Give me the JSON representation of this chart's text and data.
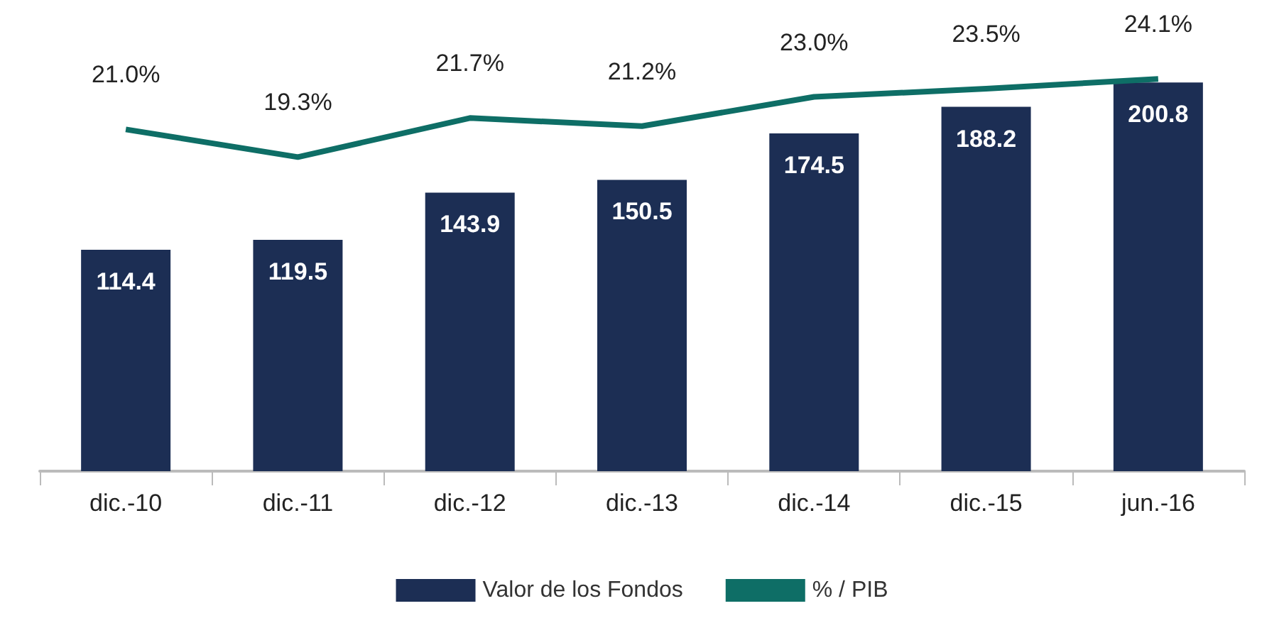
{
  "chart_data": {
    "type": "bar",
    "categories": [
      "dic.-10",
      "dic.-11",
      "dic.-12",
      "dic.-13",
      "dic.-14",
      "dic.-15",
      "jun.-16"
    ],
    "series": [
      {
        "name": "Valor de los Fondos",
        "color": "#1c2e54",
        "values": [
          114.4,
          119.5,
          143.9,
          150.5,
          174.5,
          188.2,
          200.8
        ],
        "data_labels": true
      },
      {
        "name": "% / PIB",
        "type": "line",
        "axis": "y2",
        "color": "#0e6e66",
        "values": [
          21.0,
          19.3,
          21.7,
          21.2,
          23.0,
          23.5,
          24.1
        ],
        "value_labels": [
          "21.0%",
          "19.3%",
          "21.7%",
          "21.2%",
          "23.0%",
          "23.5%",
          "24.1%"
        ]
      }
    ],
    "legend": "bottom",
    "grid": false,
    "marker": "none",
    "tick_labels": "x"
  }
}
